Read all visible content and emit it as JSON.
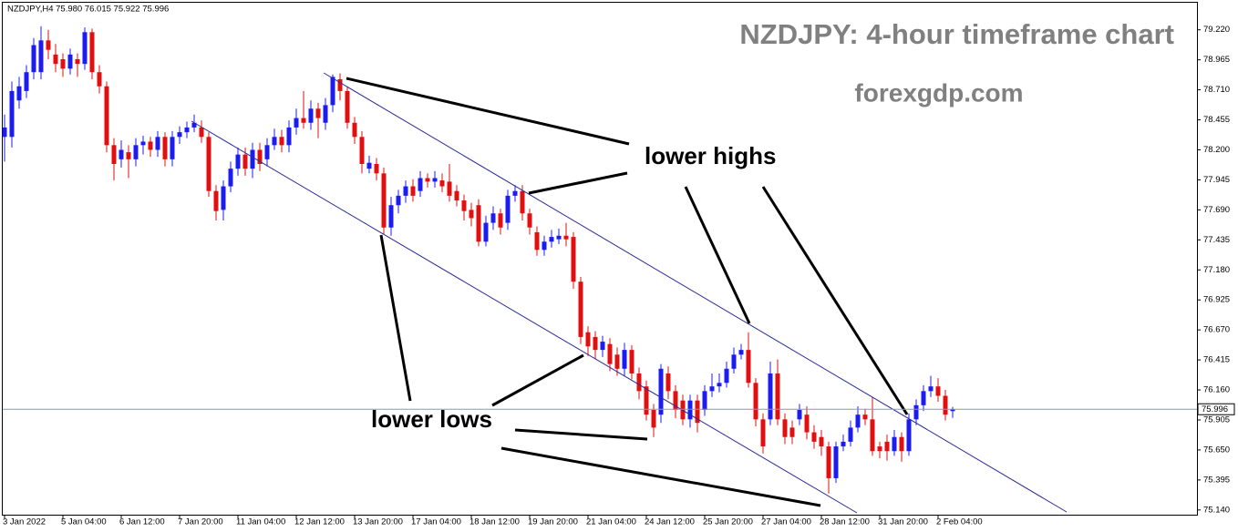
{
  "chart_data": {
    "type": "candlestick",
    "info_label": "NZDJPY,H4  75.980 76.015 75.922 75.996",
    "title": "NZDJPY: 4-hour timeframe chart",
    "subtitle": "forexgdp.com",
    "annotations": [
      "lower highs",
      "lower lows"
    ],
    "up_color": "#1c1cf0",
    "down_color": "#e01010",
    "grid": false,
    "ylim": [
      75.1,
      79.45
    ],
    "yticks": [
      {
        "value": 79.22,
        "label": "79.220"
      },
      {
        "value": 78.965,
        "label": "78.965"
      },
      {
        "value": 78.71,
        "label": "78.710"
      },
      {
        "value": 78.455,
        "label": "78.455"
      },
      {
        "value": 78.2,
        "label": "78.200"
      },
      {
        "value": 77.945,
        "label": "77.945"
      },
      {
        "value": 77.69,
        "label": "77.690"
      },
      {
        "value": 77.435,
        "label": "77.435"
      },
      {
        "value": 77.18,
        "label": "77.180"
      },
      {
        "value": 76.925,
        "label": "76.925"
      },
      {
        "value": 76.67,
        "label": "76.670"
      },
      {
        "value": 76.415,
        "label": "76.415"
      },
      {
        "value": 76.16,
        "label": "76.160"
      },
      {
        "value": 75.905,
        "label": "75.905"
      },
      {
        "value": 75.65,
        "label": "75.650"
      },
      {
        "value": 75.395,
        "label": "75.395"
      },
      {
        "value": 75.14,
        "label": "75.140"
      }
    ],
    "categories": [
      "3 Jan 2022",
      null,
      null,
      null,
      null,
      null,
      null,
      null,
      "5 Jan 04:00",
      null,
      null,
      null,
      null,
      null,
      null,
      null,
      "6 Jan 12:00",
      null,
      null,
      null,
      null,
      null,
      null,
      null,
      "7 Jan 20:00",
      null,
      null,
      null,
      null,
      null,
      null,
      null,
      "11 Jan 04:00",
      null,
      null,
      null,
      null,
      null,
      null,
      null,
      "12 Jan 12:00",
      null,
      null,
      null,
      null,
      null,
      null,
      null,
      "13 Jan 20:00",
      null,
      null,
      null,
      null,
      null,
      null,
      null,
      "17 Jan 04:00",
      null,
      null,
      null,
      null,
      null,
      null,
      null,
      "18 Jan 12:00",
      null,
      null,
      null,
      null,
      null,
      null,
      null,
      "19 Jan 20:00",
      null,
      null,
      null,
      null,
      null,
      null,
      null,
      "21 Jan 04:00",
      null,
      null,
      null,
      null,
      null,
      null,
      null,
      "24 Jan 12:00",
      null,
      null,
      null,
      null,
      null,
      null,
      null,
      "25 Jan 20:00",
      null,
      null,
      null,
      null,
      null,
      null,
      null,
      "27 Jan 04:00",
      null,
      null,
      null,
      null,
      null,
      null,
      null,
      "28 Jan 12:00",
      null,
      null,
      null,
      null,
      null,
      null,
      null,
      "31 Jan 20:00",
      null,
      null,
      null,
      null,
      null,
      null,
      null,
      "2 Feb 04:00",
      null,
      null
    ],
    "open": [
      78.31,
      78.31,
      78.62,
      78.7,
      78.86,
      78.86,
      79.13,
      79.01,
      78.97,
      78.89,
      78.97,
      78.93,
      79.2,
      78.86,
      78.74,
      78.24,
      78.12,
      78.18,
      78.12,
      78.24,
      78.27,
      78.2,
      78.31,
      78.12,
      78.31,
      78.35,
      78.39,
      78.39,
      78.31,
      77.85,
      77.69,
      77.89,
      78.04,
      78.16,
      78.04,
      78.2,
      78.12,
      78.24,
      78.31,
      78.24,
      78.39,
      78.47,
      78.43,
      78.55,
      78.43,
      78.58,
      78.8,
      78.7,
      78.43,
      78.31,
      78.04,
      78.08,
      78.0,
      77.54,
      77.73,
      77.81,
      77.89,
      77.85,
      77.96,
      77.93,
      77.94,
      77.93,
      77.85,
      77.77,
      77.69,
      77.73,
      77.42,
      77.58,
      77.66,
      77.58,
      77.81,
      77.85,
      77.66,
      77.5,
      77.35,
      77.42,
      77.44,
      77.47,
      77.46,
      77.08,
      76.65,
      76.61,
      76.5,
      76.55,
      76.46,
      76.34,
      76.5,
      76.3,
      76.19,
      75.99,
      75.95,
      76.3,
      76.15,
      76.07,
      75.91,
      76.07,
      75.99,
      76.15,
      76.19,
      76.22,
      76.34,
      76.46,
      76.5,
      76.22,
      75.91,
      75.91,
      76.3,
      75.91,
      75.84,
      75.91,
      75.95,
      75.8,
      75.76,
      75.68,
      75.41,
      75.68,
      75.72,
      75.84,
      75.95,
      75.91,
      75.68,
      75.72,
      75.64,
      75.76,
      75.64,
      75.91,
      76.03,
      76.15,
      76.19,
      76.11,
      75.98
    ],
    "high": [
      78.5,
      78.78,
      78.82,
      78.92,
      79.15,
      79.25,
      79.22,
      79.1,
      79.02,
      79.06,
      79.02,
      79.24,
      79.23,
      78.92,
      78.78,
      78.3,
      78.28,
      78.24,
      78.3,
      78.32,
      78.31,
      78.36,
      78.35,
      78.36,
      78.4,
      78.44,
      78.5,
      78.45,
      78.35,
      77.9,
      77.94,
      78.1,
      78.22,
      78.22,
      78.26,
      78.26,
      78.3,
      78.38,
      78.37,
      78.45,
      78.55,
      78.7,
      78.62,
      78.6,
      78.64,
      78.84,
      78.85,
      78.74,
      78.48,
      78.36,
      78.15,
      78.13,
      78.05,
      77.8,
      77.86,
      77.94,
      77.95,
      78.02,
      78.0,
      78.02,
      78.0,
      78.08,
      77.9,
      77.82,
      77.75,
      77.78,
      77.64,
      77.72,
      77.7,
      77.86,
      77.9,
      77.9,
      77.7,
      77.55,
      77.47,
      77.52,
      77.53,
      77.58,
      77.5,
      77.12,
      76.7,
      76.66,
      76.62,
      76.6,
      76.52,
      76.56,
      76.54,
      76.35,
      76.24,
      76.04,
      76.38,
      76.36,
      76.2,
      76.12,
      76.12,
      76.12,
      76.2,
      76.3,
      76.3,
      76.4,
      76.52,
      76.55,
      76.65,
      76.26,
      75.96,
      76.4,
      76.42,
      75.96,
      75.9,
      76.04,
      76.02,
      75.86,
      75.82,
      75.72,
      75.72,
      75.78,
      75.9,
      76.02,
      76.0,
      76.1,
      75.72,
      75.78,
      75.82,
      75.8,
      75.96,
      76.08,
      76.2,
      76.28,
      76.26,
      76.16,
      76.015
    ],
    "low": [
      78.1,
      78.22,
      78.55,
      78.64,
      78.8,
      78.8,
      78.97,
      78.86,
      78.82,
      78.84,
      78.82,
      78.88,
      78.8,
      78.68,
      78.18,
      77.94,
      78.05,
      77.96,
      78.06,
      78.16,
      78.14,
      78.14,
      78.06,
      78.06,
      78.25,
      78.3,
      78.35,
      78.26,
      77.8,
      77.6,
      77.6,
      77.84,
      77.98,
      77.98,
      77.96,
      78.02,
      78.06,
      78.2,
      78.18,
      78.18,
      78.33,
      78.38,
      78.37,
      78.3,
      78.37,
      78.52,
      78.62,
      78.38,
      78.25,
      78.0,
      78.0,
      77.94,
      77.48,
      77.47,
      77.66,
      77.75,
      77.76,
      77.8,
      77.88,
      77.88,
      77.84,
      77.76,
      77.72,
      77.6,
      77.55,
      77.38,
      77.38,
      77.52,
      77.48,
      77.52,
      77.76,
      77.6,
      77.48,
      77.3,
      77.3,
      77.37,
      77.4,
      77.38,
      77.02,
      76.55,
      76.45,
      76.42,
      76.44,
      76.32,
      76.28,
      76.28,
      76.25,
      76.08,
      75.9,
      75.76,
      75.88,
      76.08,
      75.92,
      75.86,
      75.84,
      75.8,
      75.94,
      76.1,
      76.14,
      76.18,
      76.3,
      76.42,
      76.18,
      75.85,
      75.62,
      75.86,
      75.86,
      75.7,
      75.7,
      75.86,
      75.74,
      75.66,
      75.6,
      75.28,
      75.37,
      75.64,
      75.68,
      75.8,
      75.86,
      75.6,
      75.58,
      75.56,
      75.6,
      75.55,
      75.6,
      75.86,
      75.98,
      76.1,
      76.06,
      75.9,
      75.922
    ],
    "close": [
      78.39,
      78.7,
      78.74,
      78.86,
      79.09,
      79.13,
      79.05,
      78.93,
      78.89,
      79.01,
      78.93,
      79.2,
      78.86,
      78.74,
      78.24,
      78.08,
      78.2,
      78.12,
      78.24,
      78.27,
      78.2,
      78.31,
      78.12,
      78.31,
      78.35,
      78.39,
      78.43,
      78.31,
      77.85,
      77.68,
      77.89,
      78.04,
      78.16,
      78.04,
      78.2,
      78.08,
      78.24,
      78.31,
      78.24,
      78.39,
      78.47,
      78.43,
      78.55,
      78.47,
      78.58,
      78.82,
      78.7,
      78.43,
      78.31,
      78.08,
      78.09,
      78.0,
      77.54,
      77.73,
      77.81,
      77.89,
      77.81,
      77.96,
      77.93,
      77.96,
      77.89,
      77.81,
      77.77,
      77.68,
      77.62,
      77.42,
      77.58,
      77.66,
      77.54,
      77.81,
      77.85,
      77.66,
      77.54,
      77.35,
      77.42,
      77.46,
      77.47,
      77.44,
      77.08,
      76.61,
      76.53,
      76.5,
      76.57,
      76.38,
      76.34,
      76.5,
      76.3,
      76.15,
      75.95,
      75.84,
      76.34,
      76.15,
      75.99,
      75.91,
      76.07,
      75.88,
      76.15,
      76.19,
      76.22,
      76.34,
      76.46,
      76.5,
      76.22,
      75.91,
      75.68,
      76.3,
      75.91,
      75.76,
      75.76,
      75.99,
      75.8,
      75.72,
      75.68,
      75.41,
      75.68,
      75.72,
      75.84,
      75.95,
      75.91,
      75.64,
      75.64,
      75.64,
      75.76,
      75.64,
      75.91,
      76.03,
      76.15,
      76.19,
      76.11,
      75.95,
      75.996
    ]
  }
}
